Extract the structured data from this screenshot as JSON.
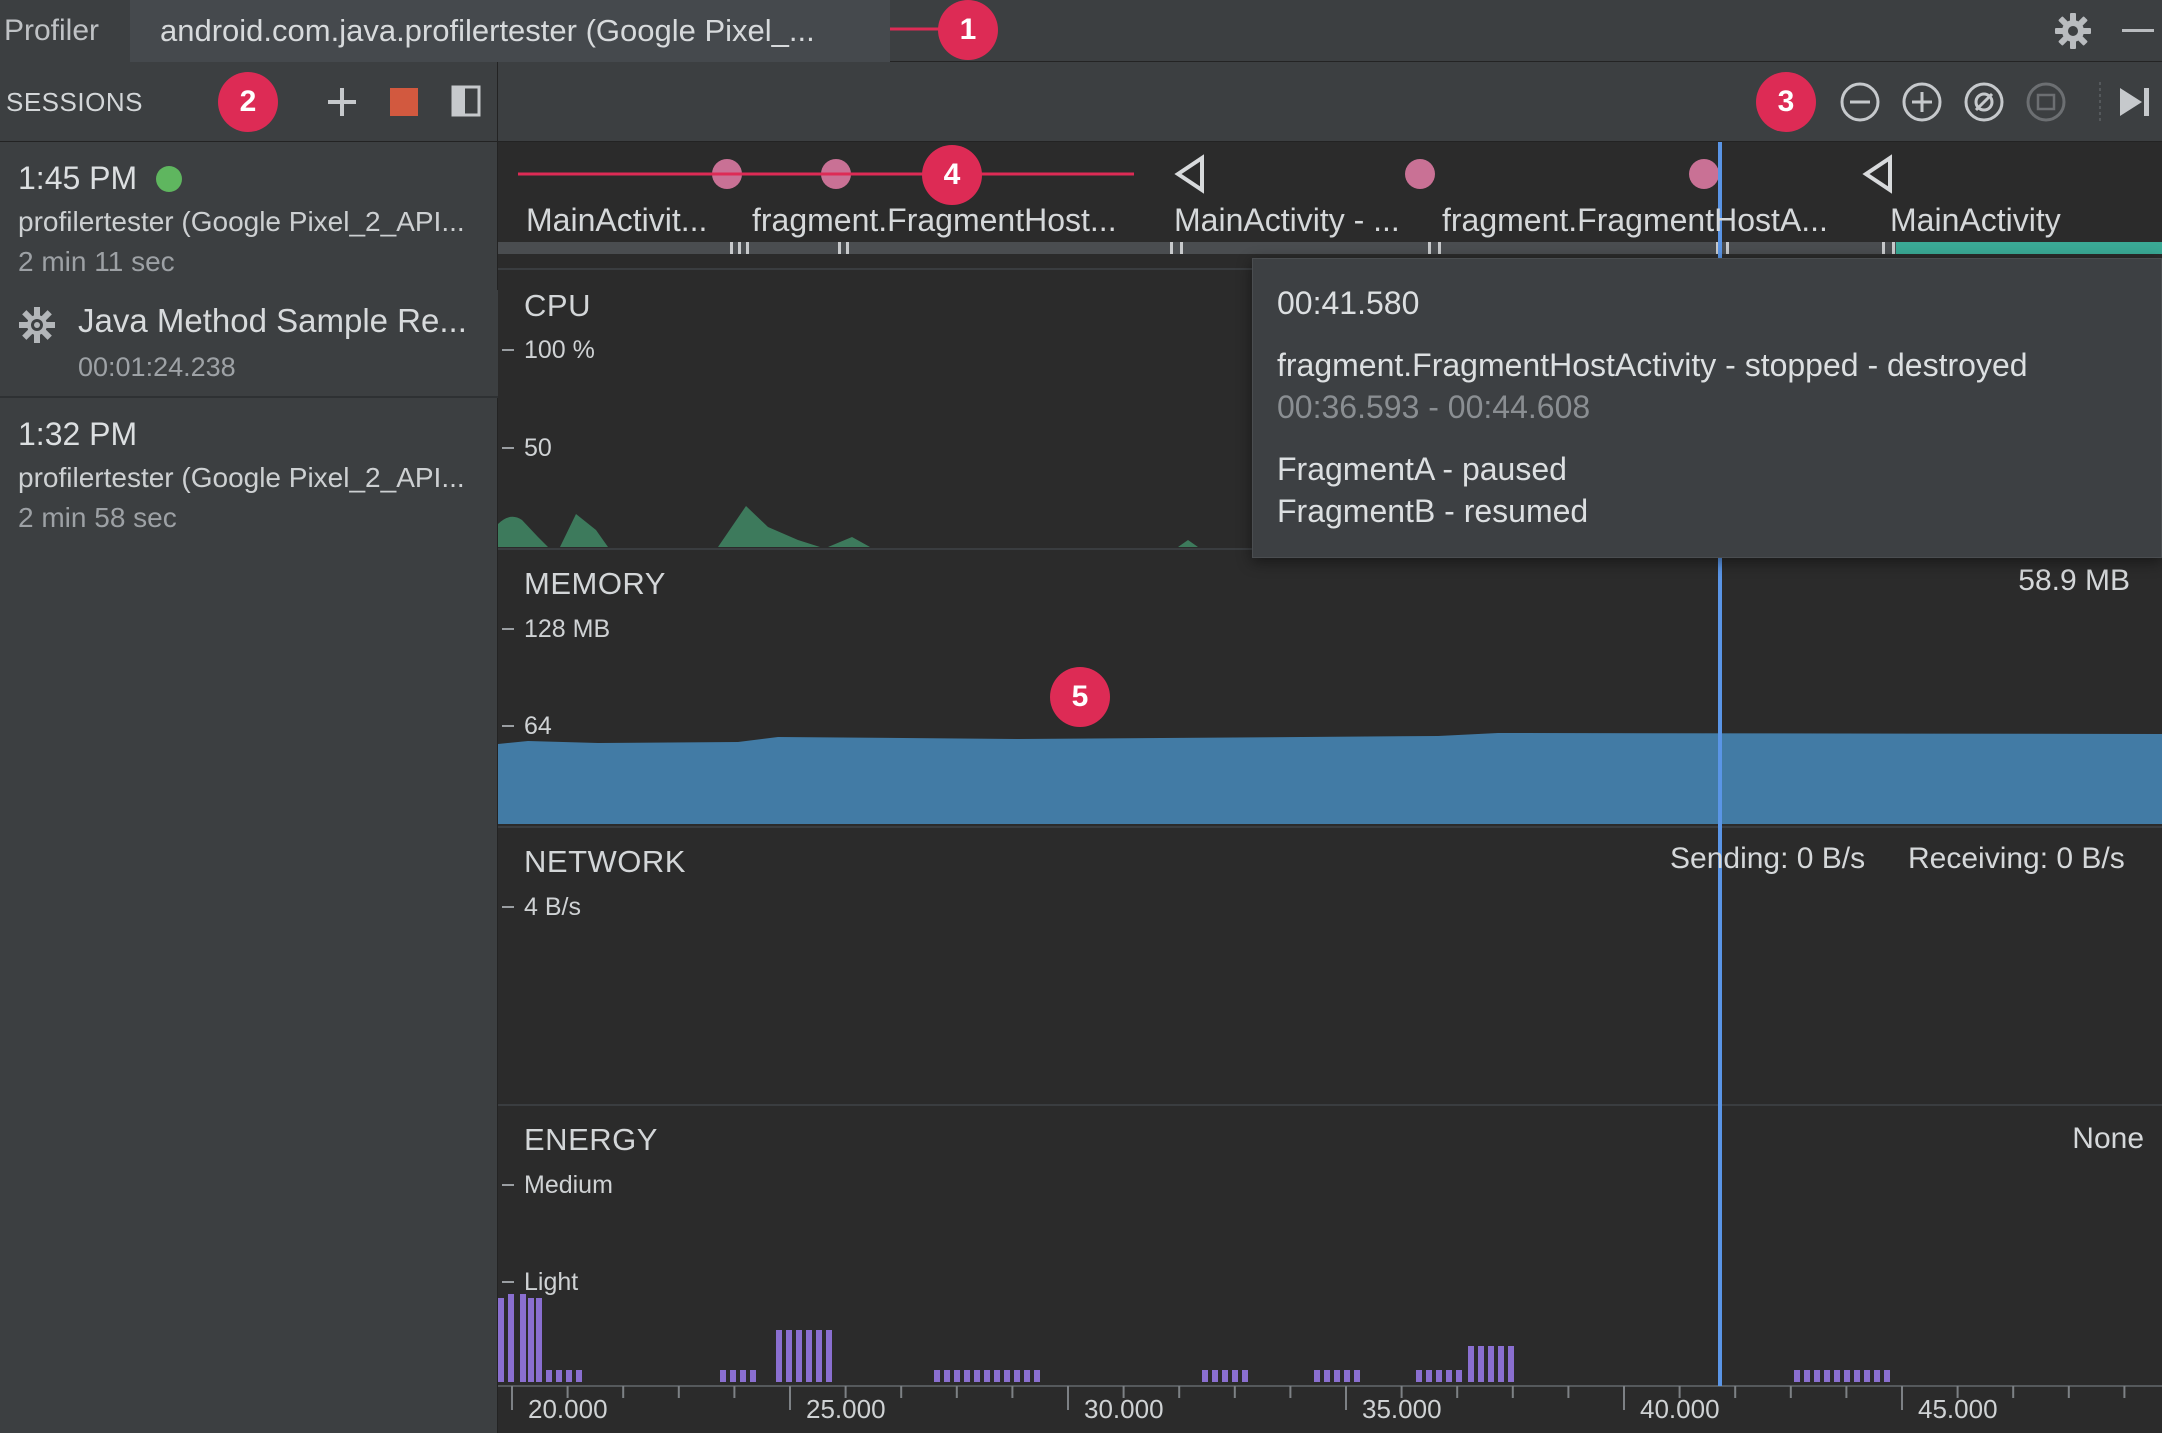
{
  "tabs": {
    "profiler": "Profiler",
    "process": "android.com.java.profilertester (Google Pixel_..."
  },
  "sessions": {
    "header_label": "SESSIONS",
    "items": [
      {
        "time": "1:45 PM",
        "device": "profilertester (Google Pixel_2_API...",
        "duration": "2 min 11 sec",
        "live": true
      },
      {
        "time": "1:32 PM",
        "device": "profilertester (Google Pixel_2_API...",
        "duration": "2 min 58 sec",
        "live": false
      }
    ],
    "capture": {
      "title": "Java Method Sample Re...",
      "time": "00:01:24.238"
    }
  },
  "activity_bar": {
    "labels": [
      "MainActivit...",
      "fragment.FragmentHost...",
      "MainActivity - ...",
      "fragment.FragmentHostA...",
      "MainActivity"
    ]
  },
  "lanes": {
    "cpu": {
      "title": "CPU",
      "axis_top": "100 %",
      "axis_mid": "50"
    },
    "memory": {
      "title": "MEMORY",
      "axis_top": "128 MB",
      "axis_mid": "64",
      "value": "58.9 MB"
    },
    "network": {
      "title": "NETWORK",
      "axis_top": "4 B/s",
      "sending": "Sending: 0 B/s",
      "receiving": "Receiving: 0 B/s"
    },
    "energy": {
      "title": "ENERGY",
      "axis_top": "Medium",
      "axis_mid": "Light",
      "value": "None"
    }
  },
  "tooltip": {
    "time": "00:41.580",
    "event": "fragment.FragmentHostActivity - stopped - destroyed",
    "range": "00:36.593 - 00:44.608",
    "fragment_a": "FragmentA - paused",
    "fragment_b": "FragmentB - resumed"
  },
  "time_axis": [
    "20.000",
    "25.000",
    "30.000",
    "35.000",
    "40.000",
    "45.000"
  ],
  "callouts": [
    "1",
    "2",
    "3",
    "4",
    "5"
  ],
  "colors": {
    "memory_fill": "#427ba5",
    "cpu_fill": "#3d7a5c",
    "energy_bar": "#8a6fd0",
    "cursor": "#5a95e6",
    "badge": "#dd2b55",
    "event_dot": "#c97195"
  }
}
